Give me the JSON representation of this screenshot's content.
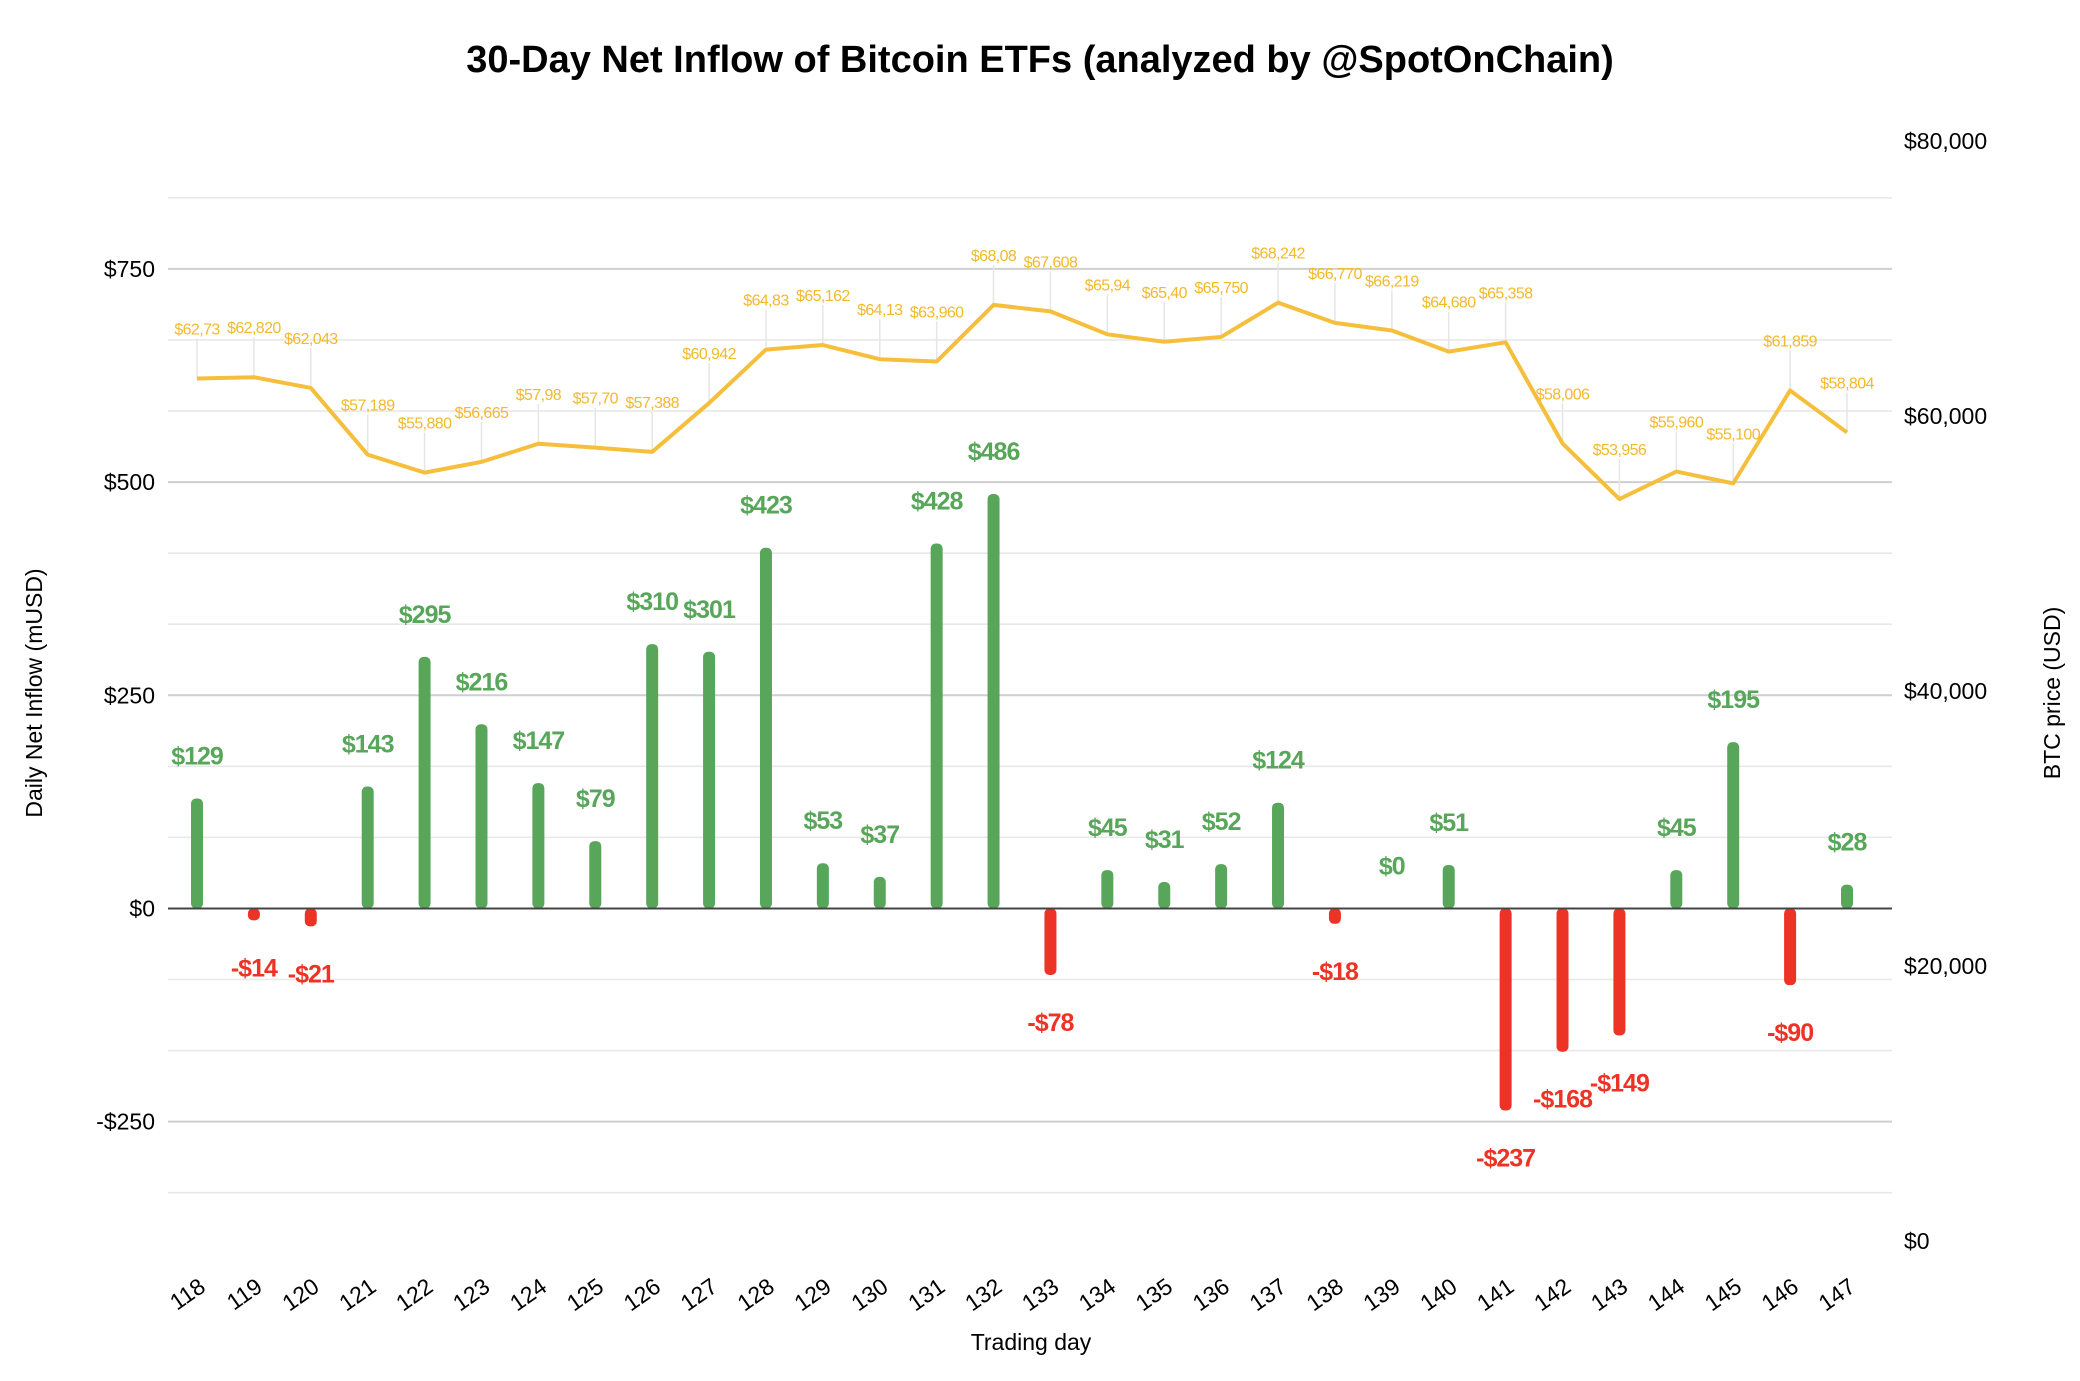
{
  "chart_data": {
    "type": "bar+line",
    "title": "30-Day Net Inflow of Bitcoin ETFs (analyzed by @SpotOnChain)",
    "xlabel": "Trading day",
    "ylabel_left": "Daily Net Inflow (mUSD)",
    "ylabel_right": "BTC price (USD)",
    "categories": [
      "118",
      "119",
      "120",
      "121",
      "122",
      "123",
      "124",
      "125",
      "126",
      "127",
      "128",
      "129",
      "130",
      "131",
      "132",
      "133",
      "134",
      "135",
      "136",
      "137",
      "138",
      "139",
      "140",
      "141",
      "142",
      "143",
      "144",
      "145",
      "146",
      "147"
    ],
    "left_axis": {
      "ylim": [
        -390,
        900
      ],
      "ticks": [
        -250,
        0,
        250,
        500,
        750
      ],
      "tick_labels": [
        "-$250",
        "$0",
        "$250",
        "$500",
        "$750"
      ]
    },
    "right_axis": {
      "ylim": [
        0,
        80000
      ],
      "ticks": [
        0,
        20000,
        40000,
        60000,
        80000
      ],
      "tick_labels": [
        "$0",
        "$20,000",
        "$40,000",
        "$60,000",
        "$80,000"
      ]
    },
    "grid": true,
    "series": [
      {
        "type": "bar",
        "axis": "left",
        "values": [
          129,
          -14,
          -21,
          143,
          295,
          216,
          147,
          79,
          310,
          301,
          423,
          53,
          37,
          428,
          486,
          -78,
          45,
          31,
          52,
          124,
          -18,
          0,
          51,
          -237,
          -168,
          -149,
          45,
          195,
          -90,
          28
        ],
        "labels": [
          "$129",
          "-$14",
          "-$21",
          "$143",
          "$295",
          "$216",
          "$147",
          "$79",
          "$310",
          "$301",
          "$423",
          "$53",
          "$37",
          "$428",
          "$486",
          "-$78",
          "$45",
          "$31",
          "$52",
          "$124",
          "-$18",
          "$0",
          "$51",
          "-$237",
          "-$168",
          "-$149",
          "$45",
          "$195",
          "-$90",
          "$28"
        ],
        "positive_color": "#57A65A",
        "negative_color": "#EC3325"
      },
      {
        "type": "line",
        "axis": "right",
        "values": [
          62730,
          62820,
          62043,
          57189,
          55880,
          56665,
          57980,
          57700,
          57388,
          60942,
          64830,
          65162,
          64130,
          63960,
          68080,
          67608,
          65940,
          65400,
          65750,
          68242,
          66770,
          66219,
          64680,
          65358,
          58006,
          53956,
          55960,
          55100,
          61859,
          58804
        ],
        "labels": [
          "$62,73",
          "$62,820",
          "$62,043",
          "$57,189",
          "$55,880",
          "$56,665",
          "$57,98",
          "$57,70",
          "$57,388",
          "$60,942",
          "$64,83",
          "$65,162",
          "$64,13",
          "$63,960",
          "$68,08",
          "$67,608",
          "$65,94",
          "$65,40",
          "$65,750",
          "$68,242",
          "$66,770",
          "$66,219",
          "$64,680",
          "$65,358",
          "$58,006",
          "$53,956",
          "$55,960",
          "$55,100",
          "$61,859",
          "$58,804"
        ],
        "color": "#F5BF3C"
      }
    ]
  }
}
